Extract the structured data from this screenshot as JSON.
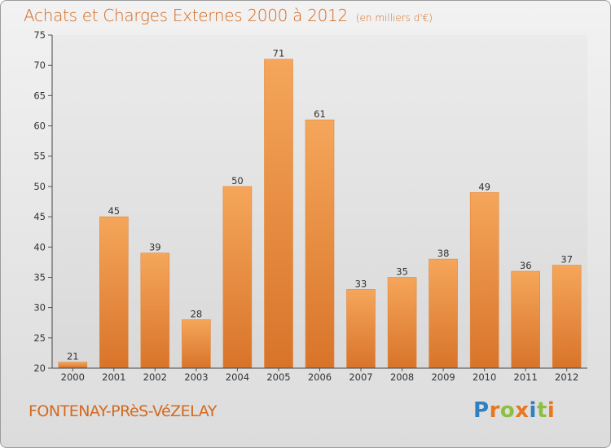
{
  "header": {
    "title": "Achats et Charges Externes 2000 à 2012",
    "unit": "(en milliers d'€)"
  },
  "footer": {
    "location": "FONTENAY-PRèS-VéZELAY",
    "brand": "Proxiti"
  },
  "colors": {
    "accent": "#d4691f",
    "bar_top": "#f5a65a",
    "bar_bottom": "#d8742a",
    "brand_letters": [
      "#2f7fc1",
      "#e8781f",
      "#8cbf3f",
      "#e8781f",
      "#2f7fc1",
      "#8cbf3f",
      "#e8781f"
    ]
  },
  "chart_data": {
    "type": "bar",
    "title": "Achats et Charges Externes 2000 à 2012",
    "subtitle": "(en milliers d'€)",
    "categories": [
      "2000",
      "2001",
      "2002",
      "2003",
      "2004",
      "2005",
      "2006",
      "2007",
      "2008",
      "2009",
      "2010",
      "2011",
      "2012"
    ],
    "values": [
      21,
      45,
      39,
      28,
      50,
      71,
      61,
      33,
      35,
      38,
      49,
      36,
      37
    ],
    "ylim": [
      20,
      75
    ],
    "yticks": [
      20,
      25,
      30,
      35,
      40,
      45,
      50,
      55,
      60,
      65,
      70,
      75
    ],
    "grid": false,
    "data_labels": true
  }
}
